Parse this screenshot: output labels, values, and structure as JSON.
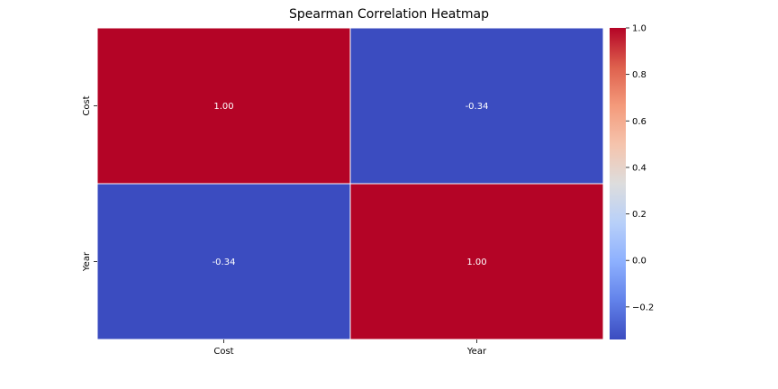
{
  "chart_data": {
    "type": "heatmap",
    "title": "Spearman Correlation Heatmap",
    "x_categories": [
      "Cost",
      "Year"
    ],
    "y_categories": [
      "Cost",
      "Year"
    ],
    "values": [
      [
        1.0,
        -0.34
      ],
      [
        -0.34,
        1.0
      ]
    ],
    "cell_labels": [
      [
        "1.00",
        "-0.34"
      ],
      [
        "-0.34",
        "1.00"
      ]
    ],
    "colormap": "coolwarm",
    "color_range": [
      -0.34,
      1.0
    ],
    "colorbar_ticks": [
      1.0,
      0.8,
      0.6,
      0.4,
      0.2,
      0.0,
      -0.2
    ],
    "colorbar_tick_labels": [
      "1.0",
      "0.8",
      "0.6",
      "0.4",
      "0.2",
      "0.0",
      "−0.2"
    ],
    "colors": {
      "high": "#b40426",
      "low": "#3b4cc0",
      "mid": "#dddddd"
    },
    "legend": "colorbar-right"
  }
}
